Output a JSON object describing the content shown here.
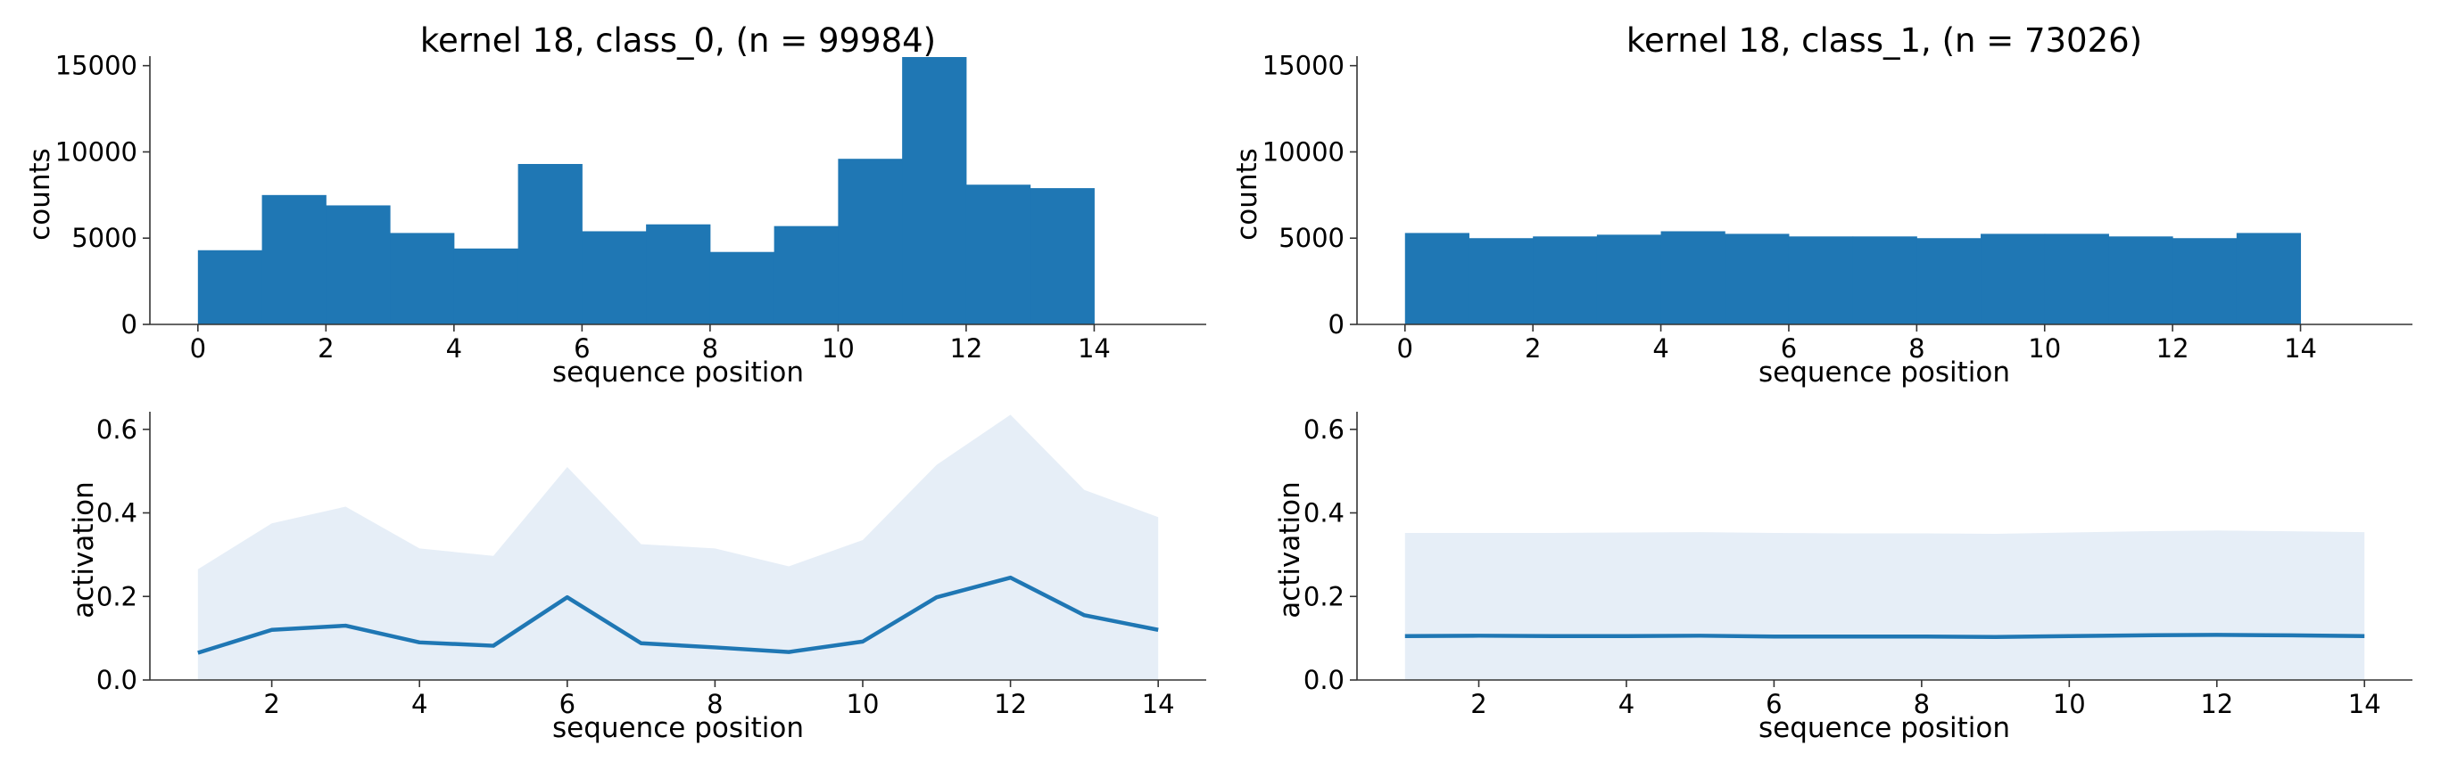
{
  "chart_data": [
    {
      "type": "bar",
      "title": "kernel 18, class_0, (n = 99984)",
      "xlabel": "sequence position",
      "ylabel": "counts",
      "xlim": [
        -0.75,
        15.75
      ],
      "ylim": [
        0,
        15500
      ],
      "xticks": [
        0,
        2,
        4,
        6,
        8,
        10,
        12,
        14
      ],
      "yticks": [
        0,
        5000,
        10000,
        15000
      ],
      "bin_edges": [
        0,
        1,
        2,
        3,
        4,
        5,
        6,
        7,
        8,
        9,
        10,
        11,
        12,
        13,
        14
      ],
      "values": [
        4300,
        7500,
        6900,
        5300,
        4400,
        9300,
        5400,
        5800,
        4200,
        5700,
        9600,
        15500,
        8100,
        7900
      ],
      "color": "#1f77b4"
    },
    {
      "type": "bar",
      "title": "kernel 18, class_1, (n = 73026)",
      "xlabel": "sequence position",
      "ylabel": "counts",
      "xlim": [
        -0.75,
        15.75
      ],
      "ylim": [
        0,
        15500
      ],
      "xticks": [
        0,
        2,
        4,
        6,
        8,
        10,
        12,
        14
      ],
      "yticks": [
        0,
        5000,
        10000,
        15000
      ],
      "bin_edges": [
        0,
        1,
        2,
        3,
        4,
        5,
        6,
        7,
        8,
        9,
        10,
        11,
        12,
        13,
        14
      ],
      "values": [
        5300,
        5000,
        5100,
        5200,
        5400,
        5250,
        5100,
        5100,
        5000,
        5250,
        5250,
        5100,
        5000,
        5300
      ],
      "color": "#1f77b4"
    },
    {
      "type": "area",
      "title": "",
      "xlabel": "sequence position",
      "ylabel": "activation",
      "xlim": [
        0.35,
        14.65
      ],
      "ylim": [
        0,
        0.64
      ],
      "xticks": [
        2,
        4,
        6,
        8,
        10,
        12,
        14
      ],
      "yticks": [
        0.0,
        0.2,
        0.4,
        0.6
      ],
      "ytick_labels": [
        "0.0",
        "0.2",
        "0.4",
        "0.6"
      ],
      "x": [
        1,
        2,
        3,
        4,
        5,
        6,
        7,
        8,
        9,
        10,
        11,
        12,
        13,
        14
      ],
      "mean": [
        0.065,
        0.12,
        0.13,
        0.09,
        0.082,
        0.198,
        0.088,
        0.078,
        0.067,
        0.092,
        0.198,
        0.245,
        0.155,
        0.12
      ],
      "upper": [
        0.265,
        0.375,
        0.415,
        0.315,
        0.297,
        0.51,
        0.325,
        0.315,
        0.272,
        0.335,
        0.515,
        0.635,
        0.455,
        0.39
      ],
      "line_color": "#1f77b4",
      "band_color": "#e6eef7"
    },
    {
      "type": "area",
      "title": "",
      "xlabel": "sequence position",
      "ylabel": "activation",
      "xlim": [
        0.35,
        14.65
      ],
      "ylim": [
        0,
        0.64
      ],
      "xticks": [
        2,
        4,
        6,
        8,
        10,
        12,
        14
      ],
      "yticks": [
        0.0,
        0.2,
        0.4,
        0.6
      ],
      "ytick_labels": [
        "0.0",
        "0.2",
        "0.4",
        "0.6"
      ],
      "x": [
        1,
        2,
        3,
        4,
        5,
        6,
        7,
        8,
        9,
        10,
        11,
        12,
        13,
        14
      ],
      "mean": [
        0.105,
        0.106,
        0.105,
        0.105,
        0.106,
        0.104,
        0.104,
        0.104,
        0.103,
        0.105,
        0.107,
        0.108,
        0.107,
        0.105
      ],
      "upper": [
        0.352,
        0.352,
        0.352,
        0.353,
        0.354,
        0.352,
        0.351,
        0.351,
        0.35,
        0.353,
        0.356,
        0.358,
        0.356,
        0.354
      ],
      "line_color": "#1f77b4",
      "band_color": "#e6eef7"
    }
  ]
}
